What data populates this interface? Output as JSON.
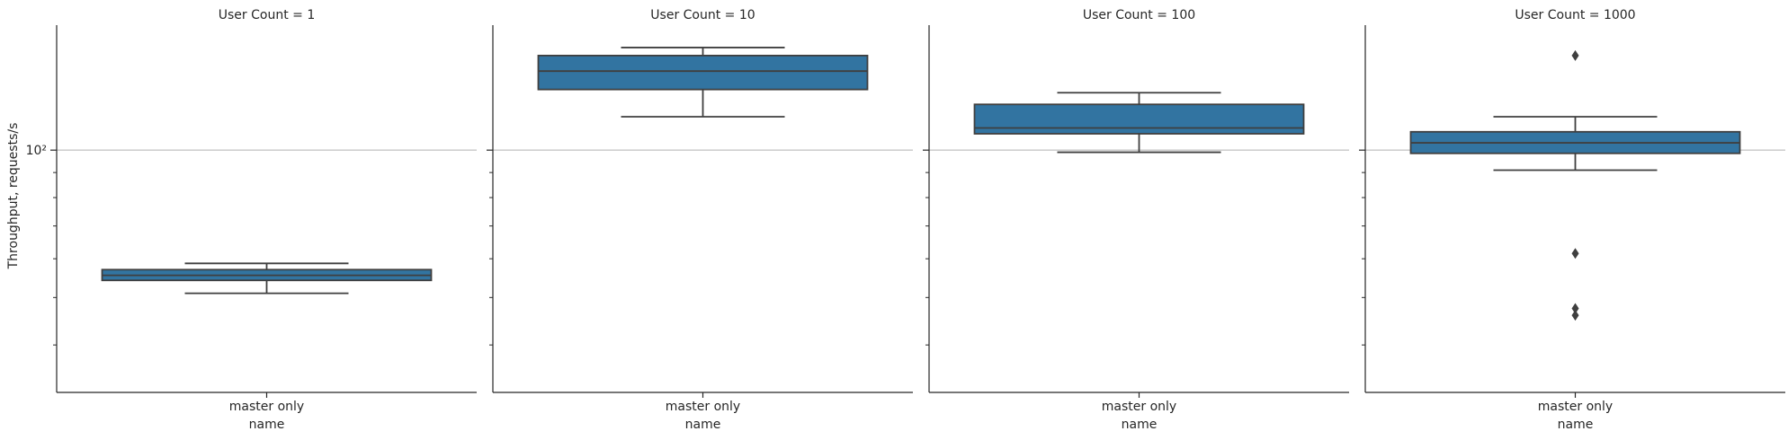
{
  "figure": {
    "ylabel": "Throughput, requests/s",
    "xlabel": "name",
    "y_tick_label": "10²",
    "y_tick_value": 100,
    "box_color": "#3274a1",
    "line_color": "#3f3f3f",
    "grid_color": "#b0b0b0"
  },
  "chart_data": [
    {
      "type": "box",
      "title": "User Count = 1",
      "categories": [
        "master only"
      ],
      "yscale": "log",
      "ylim": [
        32,
        180
      ],
      "boxes": [
        {
          "category": "master only",
          "whisker_low": 51,
          "q1": 54.2,
          "median": 55.5,
          "q3": 57,
          "whisker_high": 58.7,
          "outliers": []
        }
      ]
    },
    {
      "type": "box",
      "title": "User Count = 10",
      "categories": [
        "master only"
      ],
      "yscale": "log",
      "ylim": [
        32,
        180
      ],
      "boxes": [
        {
          "category": "master only",
          "whisker_low": 117,
          "q1": 133,
          "median": 145,
          "q3": 156,
          "whisker_high": 162,
          "outliers": []
        }
      ]
    },
    {
      "type": "box",
      "title": "User Count = 100",
      "categories": [
        "master only"
      ],
      "yscale": "log",
      "ylim": [
        32,
        180
      ],
      "boxes": [
        {
          "category": "master only",
          "whisker_low": 99,
          "q1": 108,
          "median": 111,
          "q3": 124,
          "whisker_high": 131,
          "outliers": []
        }
      ]
    },
    {
      "type": "box",
      "title": "User Count = 1000",
      "categories": [
        "master only"
      ],
      "yscale": "log",
      "ylim": [
        32,
        180
      ],
      "boxes": [
        {
          "category": "master only",
          "whisker_low": 91,
          "q1": 98.5,
          "median": 103.5,
          "q3": 109,
          "whisker_high": 117,
          "outliers": [
            156,
            61.5,
            47.5,
            46
          ]
        }
      ]
    }
  ]
}
